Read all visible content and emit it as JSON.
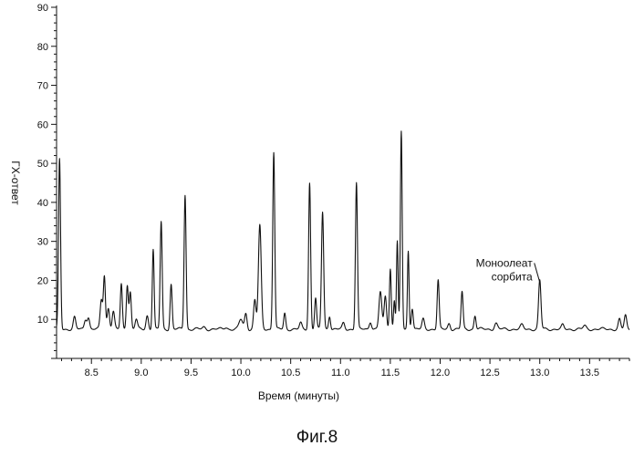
{
  "figure_caption": "Фиг.8",
  "chart_data": {
    "type": "line",
    "title": "",
    "xlabel": "Время (минуты)",
    "ylabel": "ГХ-ответ",
    "xlim": [
      8.15,
      13.9
    ],
    "ylim": [
      0,
      90
    ],
    "x_ticks": [
      8.5,
      9.0,
      9.5,
      10.0,
      10.5,
      11.0,
      11.5,
      12.0,
      12.5,
      13.0,
      13.5
    ],
    "x_tick_labels": [
      "8.5",
      "9.0",
      "9.5",
      "10.0",
      "10.5",
      "11.0",
      "11.5",
      "12.0",
      "12.5",
      "13.0",
      "13.5"
    ],
    "y_ticks": [
      10,
      20,
      30,
      40,
      50,
      60,
      70,
      80,
      90
    ],
    "y_tick_labels": [
      "10",
      "20",
      "30",
      "40",
      "50",
      "60",
      "70",
      "80",
      "90"
    ],
    "grid": false,
    "legend": "none",
    "baseline": 7.5,
    "annotations": [
      {
        "lines": [
          "Моноолеат",
          "сорбита"
        ],
        "x": 13.0,
        "y": 20.0
      }
    ],
    "series": [
      {
        "peaks": [
          [
            8.18,
            51,
            0.01
          ],
          [
            8.33,
            10.5,
            0.012
          ],
          [
            8.44,
            10,
            0.012
          ],
          [
            8.47,
            10.5,
            0.012
          ],
          [
            8.6,
            15,
            0.012
          ],
          [
            8.63,
            21,
            0.01
          ],
          [
            8.67,
            13,
            0.012
          ],
          [
            8.72,
            12,
            0.012
          ],
          [
            8.8,
            19,
            0.01
          ],
          [
            8.86,
            19,
            0.01
          ],
          [
            8.89,
            17,
            0.01
          ],
          [
            8.95,
            10,
            0.012
          ],
          [
            9.06,
            11,
            0.012
          ],
          [
            9.12,
            28,
            0.009
          ],
          [
            9.2,
            35,
            0.01
          ],
          [
            9.3,
            19,
            0.01
          ],
          [
            9.44,
            42,
            0.01
          ],
          [
            9.63,
            8,
            0.015
          ],
          [
            9.85,
            8,
            0.015
          ],
          [
            10.0,
            10,
            0.018
          ],
          [
            10.05,
            11.5,
            0.012
          ],
          [
            10.14,
            15,
            0.012
          ],
          [
            10.19,
            34,
            0.014
          ],
          [
            10.33,
            53,
            0.01
          ],
          [
            10.44,
            11.5,
            0.01
          ],
          [
            10.6,
            9,
            0.012
          ],
          [
            10.69,
            45,
            0.01
          ],
          [
            10.75,
            15.5,
            0.01
          ],
          [
            10.82,
            37.5,
            0.011
          ],
          [
            10.89,
            11,
            0.01
          ],
          [
            11.03,
            9,
            0.012
          ],
          [
            11.16,
            45,
            0.01
          ],
          [
            11.3,
            9.5,
            0.012
          ],
          [
            11.4,
            17,
            0.014
          ],
          [
            11.45,
            16,
            0.012
          ],
          [
            11.5,
            23,
            0.009
          ],
          [
            11.54,
            15,
            0.008
          ],
          [
            11.57,
            30,
            0.008
          ],
          [
            11.61,
            58,
            0.009
          ],
          [
            11.68,
            27.5,
            0.008
          ],
          [
            11.72,
            13,
            0.01
          ],
          [
            11.83,
            10,
            0.012
          ],
          [
            11.98,
            20,
            0.01
          ],
          [
            12.09,
            9,
            0.012
          ],
          [
            12.22,
            17,
            0.01
          ],
          [
            12.35,
            11,
            0.01
          ],
          [
            12.56,
            9,
            0.015
          ],
          [
            12.82,
            8.5,
            0.015
          ],
          [
            13.0,
            20,
            0.012
          ],
          [
            13.23,
            8.5,
            0.012
          ],
          [
            13.45,
            8.3,
            0.015
          ],
          [
            13.8,
            10,
            0.012
          ],
          [
            13.86,
            11,
            0.012
          ]
        ]
      }
    ]
  }
}
